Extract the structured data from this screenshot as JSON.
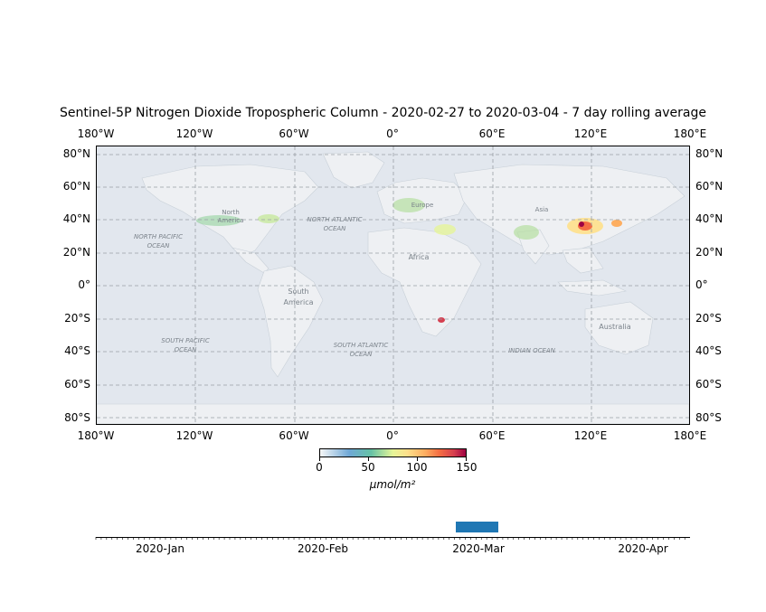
{
  "title": "Sentinel-5P Nitrogen Dioxide Tropospheric Column - 2020-02-27 to 2020-03-04 - 7 day rolling average",
  "lon_labels": [
    "180°W",
    "120°W",
    "60°W",
    "0°",
    "60°E",
    "120°E",
    "180°E"
  ],
  "lat_labels": [
    "80°N",
    "60°N",
    "40°N",
    "20°N",
    "0°",
    "20°S",
    "40°S",
    "60°S",
    "80°S"
  ],
  "map_labels": {
    "north_america": [
      "North",
      "America"
    ],
    "south_america": [
      "South",
      "America"
    ],
    "europe": "Europe",
    "africa": "Africa",
    "asia": "Asia",
    "australia": "Australia",
    "north_pacific": [
      "NORTH PACIFIC",
      "OCEAN"
    ],
    "north_atlantic": [
      "NORTH ATLANTIC",
      "OCEAN"
    ],
    "south_pacific": [
      "SOUTH PACIFIC",
      "OCEAN"
    ],
    "south_atlantic": [
      "SOUTH ATLANTIC",
      "OCEAN"
    ],
    "indian_ocean": "INDIAN OCEAN"
  },
  "colorbar": {
    "ticks": [
      "0",
      "50",
      "100",
      "150"
    ],
    "unit": "μmol/m²",
    "min": 0,
    "max": 150
  },
  "timeline": {
    "ticks": [
      "2020-Jan",
      "2020-Feb",
      "2020-Mar",
      "2020-Apr"
    ],
    "selected_range": [
      "2020-02-27",
      "2020-03-04"
    ]
  }
}
